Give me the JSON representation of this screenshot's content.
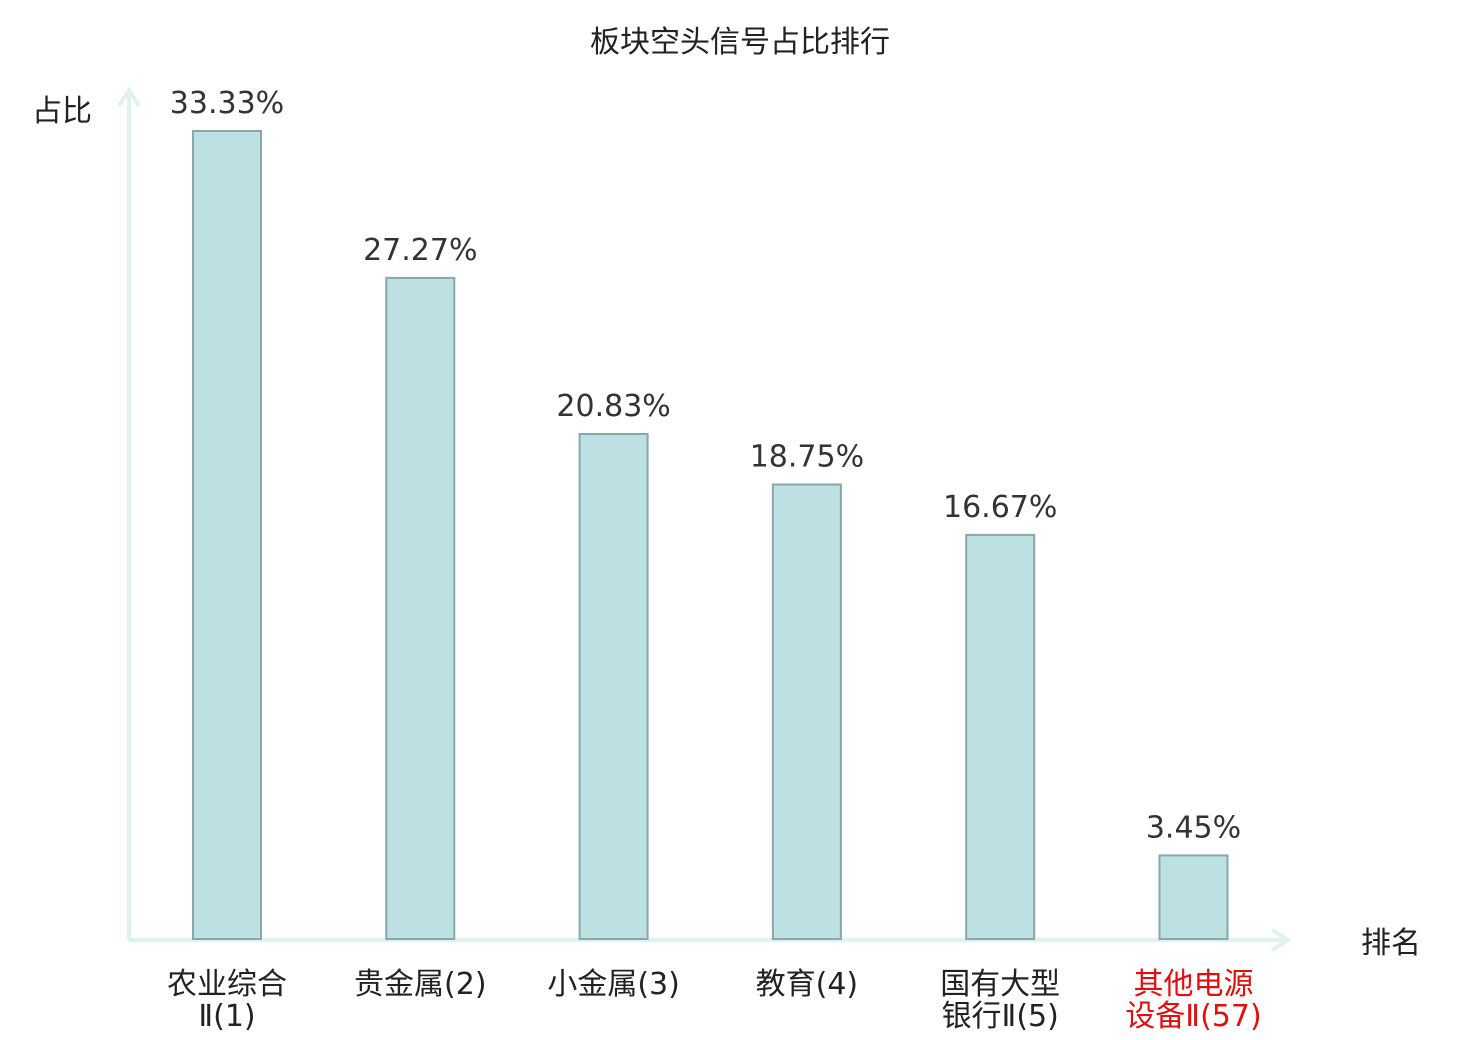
{
  "chart_data": {
    "type": "bar",
    "title": "板块空头信号占比排行",
    "ylabel": "占比",
    "xlabel": "排名",
    "categories": [
      [
        "农业综合",
        "Ⅱ(1)"
      ],
      [
        "贵金属(2)"
      ],
      [
        "小金属(3)"
      ],
      [
        "教育(4)"
      ],
      [
        "国有大型",
        "银行Ⅱ(5)"
      ],
      [
        "其他电源",
        "设备Ⅱ(57)"
      ]
    ],
    "values": [
      33.33,
      27.27,
      20.83,
      18.75,
      16.67,
      3.45
    ],
    "value_labels": [
      "33.33%",
      "27.27%",
      "20.83%",
      "18.75%",
      "16.67%",
      "3.45%"
    ],
    "highlight_index": 5,
    "ylim": [
      0,
      35
    ],
    "grid": false,
    "colors": {
      "bar_fill": "#bde0e3",
      "bar_stroke": "#8aa7a9",
      "axis": "#dff2ef",
      "label": "#222222",
      "highlight": "#e01010"
    }
  }
}
